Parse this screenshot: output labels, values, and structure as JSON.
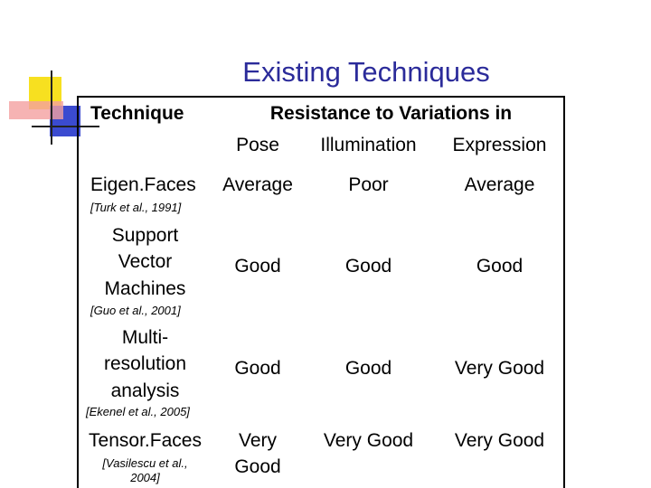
{
  "title": "Existing Techniques",
  "table": {
    "header": {
      "technique": "Technique",
      "group": "Resistance to Variations in",
      "columns": [
        "Pose",
        "Illumination",
        "Expression"
      ]
    },
    "rows": [
      {
        "name": "Eigen.Faces",
        "citation": "[Turk et al., 1991]",
        "cells": [
          "Average",
          "Poor",
          "Average"
        ]
      },
      {
        "name": "Support\nVector\nMachines",
        "citation": "[Guo et al., 2001]",
        "cells": [
          "Good",
          "Good",
          "Good"
        ]
      },
      {
        "name": "Multi-\nresolution\nanalysis",
        "citation": "[Ekenel et al., 2005]",
        "cells": [
          "Good",
          "Good",
          "Very Good"
        ]
      },
      {
        "name": "Tensor.Faces",
        "citation": "[Vasilescu et al.,\n2004]",
        "cells": [
          "Very\nGood",
          "Very Good",
          "Very Good"
        ]
      }
    ]
  }
}
